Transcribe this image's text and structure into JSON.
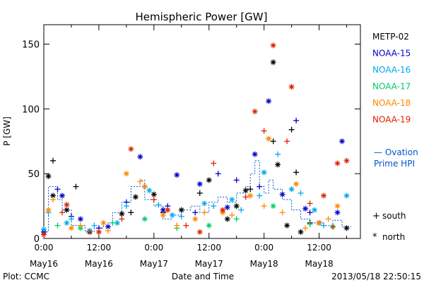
{
  "chart_data": {
    "type": "scatter",
    "title": "Hemispheric Power [GW]",
    "ylabel": "P [GW]",
    "xlabel": "Date and Time",
    "xlim": [
      0,
      69
    ],
    "ylim": [
      0,
      165
    ],
    "yticks": [
      0,
      50,
      100,
      150
    ],
    "xticks": [
      {
        "x": 0,
        "time": "0:00",
        "date": "May16"
      },
      {
        "x": 12,
        "time": "12:00",
        "date": "May16"
      },
      {
        "x": 24,
        "time": "0:00",
        "date": "May17"
      },
      {
        "x": 36,
        "time": "12:00",
        "date": "May17"
      },
      {
        "x": 48,
        "time": "0:00",
        "date": "May18"
      },
      {
        "x": 60,
        "time": "12:00",
        "date": "May18"
      }
    ],
    "footer_left": "Plot: CCMC",
    "footer_right": "2013/05/18 22:50:15",
    "ovation_label_1": "— Ovation",
    "ovation_label_2": "Prime HPI",
    "marker_legend": [
      {
        "symbol": "+",
        "label": "south"
      },
      {
        "symbol": "*",
        "label": "north"
      }
    ],
    "series": [
      {
        "name": "METP-02",
        "color": "#000000",
        "south": [
          [
            2,
            60
          ],
          [
            7,
            40
          ],
          [
            19,
            20
          ],
          [
            26,
            20
          ],
          [
            34,
            35
          ],
          [
            45,
            38
          ],
          [
            50,
            75
          ],
          [
            54,
            84
          ],
          [
            55,
            51
          ],
          [
            58,
            12
          ]
        ],
        "north": [
          [
            1,
            48
          ],
          [
            2,
            33
          ],
          [
            5,
            22
          ],
          [
            10,
            5
          ],
          [
            17,
            19
          ],
          [
            20,
            32
          ],
          [
            24,
            34
          ],
          [
            30,
            22
          ],
          [
            36,
            45
          ],
          [
            40,
            15
          ],
          [
            42,
            25
          ],
          [
            44,
            37
          ],
          [
            50,
            136
          ],
          [
            51,
            57
          ],
          [
            53,
            10
          ],
          [
            56,
            5
          ],
          [
            60,
            12
          ],
          [
            66,
            8
          ]
        ]
      },
      {
        "name": "NOAA-15",
        "color": "#0000cc",
        "south": [
          [
            3,
            38
          ],
          [
            6,
            17
          ],
          [
            12,
            8
          ],
          [
            18,
            28
          ],
          [
            22,
            40
          ],
          [
            27,
            25
          ],
          [
            33,
            20
          ],
          [
            38,
            50
          ],
          [
            42,
            45
          ],
          [
            47,
            40
          ],
          [
            55,
            91
          ],
          [
            58,
            20
          ]
        ],
        "north": [
          [
            0,
            5
          ],
          [
            4,
            33
          ],
          [
            8,
            15
          ],
          [
            14,
            9
          ],
          [
            21,
            63
          ],
          [
            26,
            22
          ],
          [
            29,
            49
          ],
          [
            34,
            42
          ],
          [
            40,
            24
          ],
          [
            46,
            65
          ],
          [
            49,
            106
          ],
          [
            52,
            34
          ],
          [
            57,
            23
          ],
          [
            60,
            12
          ],
          [
            64,
            20
          ],
          [
            65,
            75
          ]
        ]
      },
      {
        "name": "NOAA-16",
        "color": "#00aaee",
        "south": [
          [
            1,
            20
          ],
          [
            6,
            15
          ],
          [
            11,
            10
          ],
          [
            18,
            25
          ],
          [
            25,
            26
          ],
          [
            30,
            17
          ],
          [
            37,
            25
          ],
          [
            43,
            22
          ],
          [
            47,
            33
          ],
          [
            51,
            65
          ],
          [
            56,
            35
          ],
          [
            61,
            10
          ]
        ],
        "north": [
          [
            0,
            7
          ],
          [
            5,
            12
          ],
          [
            10,
            6
          ],
          [
            16,
            12
          ],
          [
            23,
            37
          ],
          [
            28,
            18
          ],
          [
            35,
            27
          ],
          [
            41,
            30
          ],
          [
            48,
            51
          ],
          [
            54,
            38
          ],
          [
            59,
            22
          ],
          [
            66,
            33
          ]
        ]
      },
      {
        "name": "NOAA-17",
        "color": "#00cc66",
        "south": [
          [
            3,
            10
          ],
          [
            15,
            12
          ],
          [
            29,
            8
          ],
          [
            42,
            15
          ],
          [
            58,
            11
          ]
        ],
        "north": [
          [
            8,
            8
          ],
          [
            22,
            15
          ],
          [
            36,
            10
          ],
          [
            50,
            25
          ],
          [
            63,
            9
          ]
        ]
      },
      {
        "name": "NOAA-18",
        "color": "#ff8800",
        "south": [
          [
            2,
            30
          ],
          [
            8,
            10
          ],
          [
            14,
            6
          ],
          [
            21,
            44
          ],
          [
            29,
            10
          ],
          [
            35,
            20
          ],
          [
            41,
            18
          ],
          [
            48,
            25
          ],
          [
            52,
            20
          ],
          [
            57,
            8
          ],
          [
            62,
            15
          ]
        ],
        "north": [
          [
            1,
            22
          ],
          [
            6,
            8
          ],
          [
            13,
            12
          ],
          [
            18,
            50
          ],
          [
            22,
            40
          ],
          [
            26,
            18
          ],
          [
            33,
            15
          ],
          [
            39,
            20
          ],
          [
            45,
            33
          ],
          [
            49,
            77
          ],
          [
            55,
            42
          ],
          [
            60,
            12
          ],
          [
            64,
            25
          ]
        ]
      },
      {
        "name": "NOAA-19",
        "color": "#dd2200",
        "south": [
          [
            4,
            20
          ],
          [
            10,
            5
          ],
          [
            17,
            15
          ],
          [
            24,
            30
          ],
          [
            31,
            10
          ],
          [
            37,
            58
          ],
          [
            44,
            32
          ],
          [
            48,
            83
          ],
          [
            53,
            75
          ],
          [
            58,
            27
          ],
          [
            63,
            9
          ]
        ],
        "north": [
          [
            0,
            3
          ],
          [
            5,
            26
          ],
          [
            12,
            5
          ],
          [
            19,
            69
          ],
          [
            27,
            22
          ],
          [
            34,
            5
          ],
          [
            39,
            22
          ],
          [
            46,
            98
          ],
          [
            50,
            149
          ],
          [
            54,
            117
          ],
          [
            61,
            33
          ],
          [
            64,
            58
          ],
          [
            66,
            60
          ]
        ]
      }
    ],
    "hpi": [
      [
        0,
        5
      ],
      [
        1,
        5
      ],
      [
        1,
        40
      ],
      [
        3,
        40
      ],
      [
        3,
        30
      ],
      [
        4,
        30
      ],
      [
        4,
        22
      ],
      [
        6,
        22
      ],
      [
        6,
        10
      ],
      [
        9,
        10
      ],
      [
        9,
        5
      ],
      [
        11,
        5
      ],
      [
        11,
        8
      ],
      [
        13,
        8
      ],
      [
        13,
        12
      ],
      [
        15,
        12
      ],
      [
        15,
        20
      ],
      [
        17,
        20
      ],
      [
        17,
        28
      ],
      [
        19,
        28
      ],
      [
        19,
        40
      ],
      [
        21,
        40
      ],
      [
        21,
        45
      ],
      [
        22,
        45
      ],
      [
        22,
        30
      ],
      [
        24,
        30
      ],
      [
        24,
        25
      ],
      [
        26,
        25
      ],
      [
        26,
        15
      ],
      [
        28,
        15
      ],
      [
        28,
        18
      ],
      [
        30,
        18
      ],
      [
        30,
        22
      ],
      [
        32,
        22
      ],
      [
        32,
        25
      ],
      [
        34,
        25
      ],
      [
        34,
        20
      ],
      [
        36,
        20
      ],
      [
        36,
        28
      ],
      [
        38,
        28
      ],
      [
        38,
        32
      ],
      [
        40,
        32
      ],
      [
        40,
        28
      ],
      [
        42,
        28
      ],
      [
        42,
        35
      ],
      [
        44,
        35
      ],
      [
        44,
        40
      ],
      [
        45,
        40
      ],
      [
        45,
        50
      ],
      [
        46,
        50
      ],
      [
        46,
        60
      ],
      [
        47,
        60
      ],
      [
        47,
        40
      ],
      [
        48,
        40
      ],
      [
        48,
        35
      ],
      [
        49,
        35
      ],
      [
        49,
        45
      ],
      [
        50,
        45
      ],
      [
        50,
        38
      ],
      [
        52,
        38
      ],
      [
        52,
        30
      ],
      [
        54,
        30
      ],
      [
        54,
        22
      ],
      [
        56,
        22
      ],
      [
        56,
        15
      ],
      [
        58,
        15
      ],
      [
        58,
        12
      ],
      [
        61,
        12
      ],
      [
        61,
        10
      ],
      [
        63,
        10
      ],
      [
        63,
        14
      ],
      [
        65,
        14
      ],
      [
        65,
        9
      ],
      [
        67,
        9
      ]
    ]
  }
}
